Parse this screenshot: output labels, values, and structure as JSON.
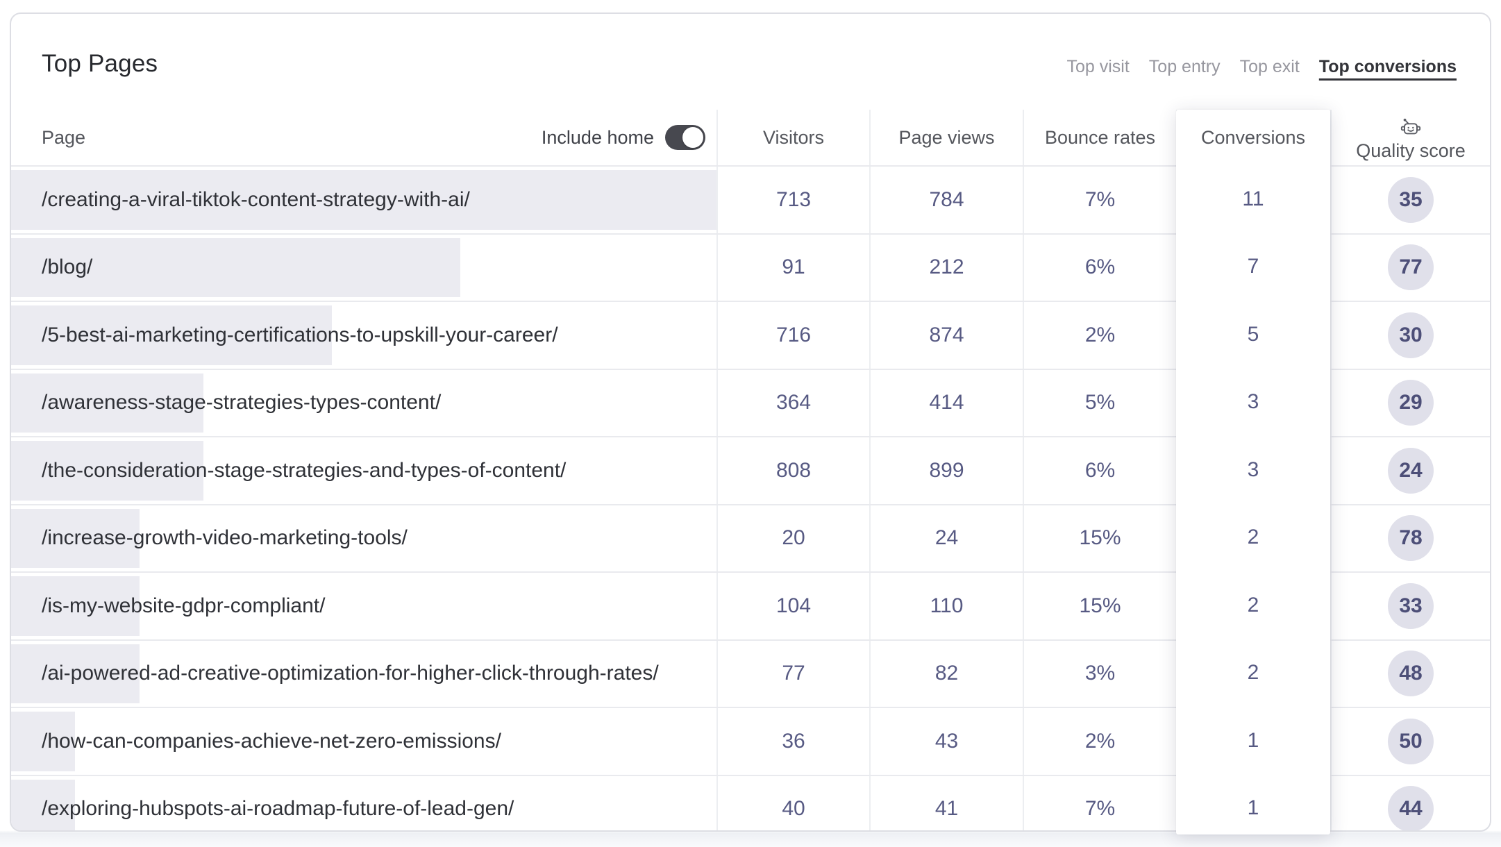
{
  "card": {
    "title": "Top Pages",
    "tabs": [
      {
        "label": "Top visit",
        "active": false
      },
      {
        "label": "Top entry",
        "active": false
      },
      {
        "label": "Top exit",
        "active": false
      },
      {
        "label": "Top conversions",
        "active": true
      }
    ],
    "toggle": {
      "label": "Include home",
      "state": "on"
    },
    "columns": [
      "Page",
      "Visitors",
      "Page views",
      "Bounce rates",
      "Conversions",
      "Quality score"
    ],
    "quality_header_icon": "robot-icon",
    "max_conversions": 11,
    "rows": [
      {
        "page": "/creating-a-viral-tiktok-content-strategy-with-ai/",
        "visitors": "713",
        "page_views": "784",
        "bounce_rate": "7%",
        "conversions": "11",
        "quality_score": "35"
      },
      {
        "page": "/blog/",
        "visitors": "91",
        "page_views": "212",
        "bounce_rate": "6%",
        "conversions": "7",
        "quality_score": "77"
      },
      {
        "page": "/5-best-ai-marketing-certifications-to-upskill-your-career/",
        "visitors": "716",
        "page_views": "874",
        "bounce_rate": "2%",
        "conversions": "5",
        "quality_score": "30"
      },
      {
        "page": "/awareness-stage-strategies-types-content/",
        "visitors": "364",
        "page_views": "414",
        "bounce_rate": "5%",
        "conversions": "3",
        "quality_score": "29"
      },
      {
        "page": "/the-consideration-stage-strategies-and-types-of-content/",
        "visitors": "808",
        "page_views": "899",
        "bounce_rate": "6%",
        "conversions": "3",
        "quality_score": "24"
      },
      {
        "page": "/increase-growth-video-marketing-tools/",
        "visitors": "20",
        "page_views": "24",
        "bounce_rate": "15%",
        "conversions": "2",
        "quality_score": "78"
      },
      {
        "page": "/is-my-website-gdpr-compliant/",
        "visitors": "104",
        "page_views": "110",
        "bounce_rate": "15%",
        "conversions": "2",
        "quality_score": "33"
      },
      {
        "page": "/ai-powered-ad-creative-optimization-for-higher-click-through-rates/",
        "visitors": "77",
        "page_views": "82",
        "bounce_rate": "3%",
        "conversions": "2",
        "quality_score": "48"
      },
      {
        "page": "/how-can-companies-achieve-net-zero-emissions/",
        "visitors": "36",
        "page_views": "43",
        "bounce_rate": "2%",
        "conversions": "1",
        "quality_score": "50"
      },
      {
        "page": "/exploring-hubspots-ai-roadmap-future-of-lead-gen/",
        "visitors": "40",
        "page_views": "41",
        "bounce_rate": "7%",
        "conversions": "1",
        "quality_score": "44"
      }
    ]
  },
  "colors": {
    "number_text": "#575a83",
    "page_text": "#2f3137",
    "bar_fill": "#ebebf1",
    "badge_bg": "#e0e0ea",
    "badge_text": "#4d4f78",
    "toggle_on_bg": "#47484f",
    "active_tab": "#333439",
    "inactive_tab": "#97979f",
    "card_border": "#dddee4"
  }
}
